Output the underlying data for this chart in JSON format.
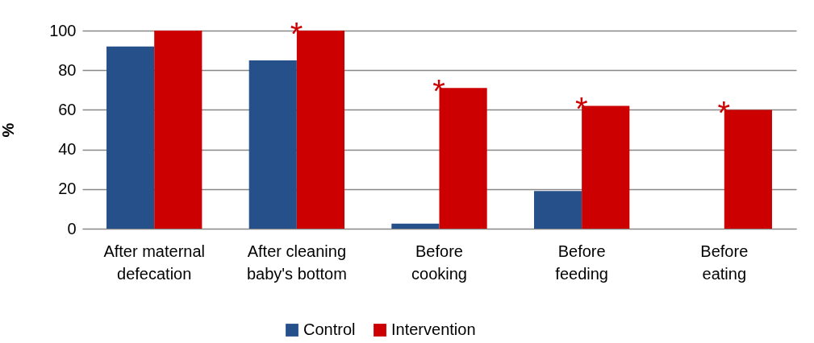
{
  "chart_data": {
    "type": "bar",
    "ylabel": "%",
    "categories": [
      "After maternal defecation",
      "After cleaning baby's bottom",
      "Before cooking",
      "Before feeding",
      "Before eating"
    ],
    "series": [
      {
        "name": "Control",
        "color": "#26508a",
        "values": [
          92,
          85,
          2.5,
          19,
          null
        ]
      },
      {
        "name": "Intervention",
        "color": "#cc0000",
        "values": [
          100,
          100,
          71,
          62,
          60
        ]
      }
    ],
    "annotations": [
      {
        "text": "*",
        "x": "After cleaning baby's bottom",
        "y": 100
      },
      {
        "text": "*",
        "x": "Before cooking",
        "y": 71
      },
      {
        "text": "*",
        "x": "Before feeding",
        "y": 62
      },
      {
        "text": "*",
        "x": "Before eating",
        "y": 60
      }
    ],
    "ylim": [
      0,
      100
    ],
    "yticks": [
      0,
      20,
      40,
      60,
      80,
      100
    ],
    "grid": "y",
    "legend": "bottom"
  }
}
